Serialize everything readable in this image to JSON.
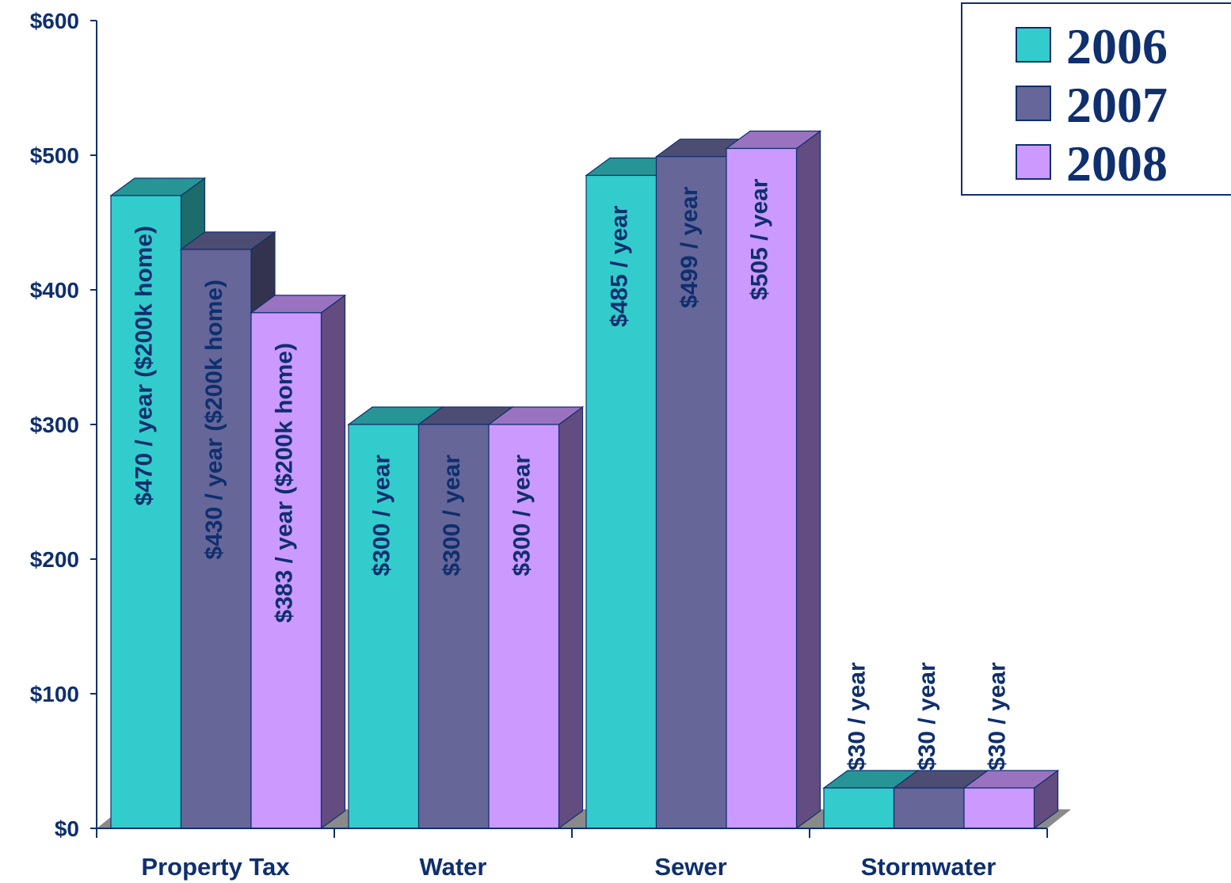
{
  "chart_data": {
    "type": "bar",
    "categories": [
      "Property Tax",
      "Water",
      "Sewer",
      "Stormwater"
    ],
    "series": [
      {
        "name": "2006",
        "color": "#33cccc",
        "side_color": "#1d6b6b",
        "top_color": "#279595",
        "values": [
          470,
          300,
          485,
          30
        ],
        "labels": [
          "$470 / year ($200k home)",
          "$300 / year",
          "$485 / year",
          "$30 / year"
        ]
      },
      {
        "name": "2007",
        "color": "#666699",
        "side_color": "#33334d",
        "top_color": "#4d4d73",
        "values": [
          430,
          300,
          499,
          30
        ],
        "labels": [
          "$430 / year ($200k home)",
          "$300 / year",
          "$499 / year",
          "$30 / year"
        ]
      },
      {
        "name": "2008",
        "color": "#cc99ff",
        "side_color": "#634c7f",
        "top_color": "#9a73c0",
        "values": [
          383,
          300,
          505,
          30
        ],
        "labels": [
          "$383 / year ($200k home)",
          "$300 / year",
          "$505 / year",
          "$30 / year"
        ]
      }
    ],
    "y_ticks": [
      "$0",
      "$100",
      "$200",
      "$300",
      "$400",
      "$500",
      "$600"
    ],
    "ylim": [
      0,
      600
    ],
    "grid": false,
    "legend_position": "top-right",
    "text_color": "#0f2f6e"
  }
}
